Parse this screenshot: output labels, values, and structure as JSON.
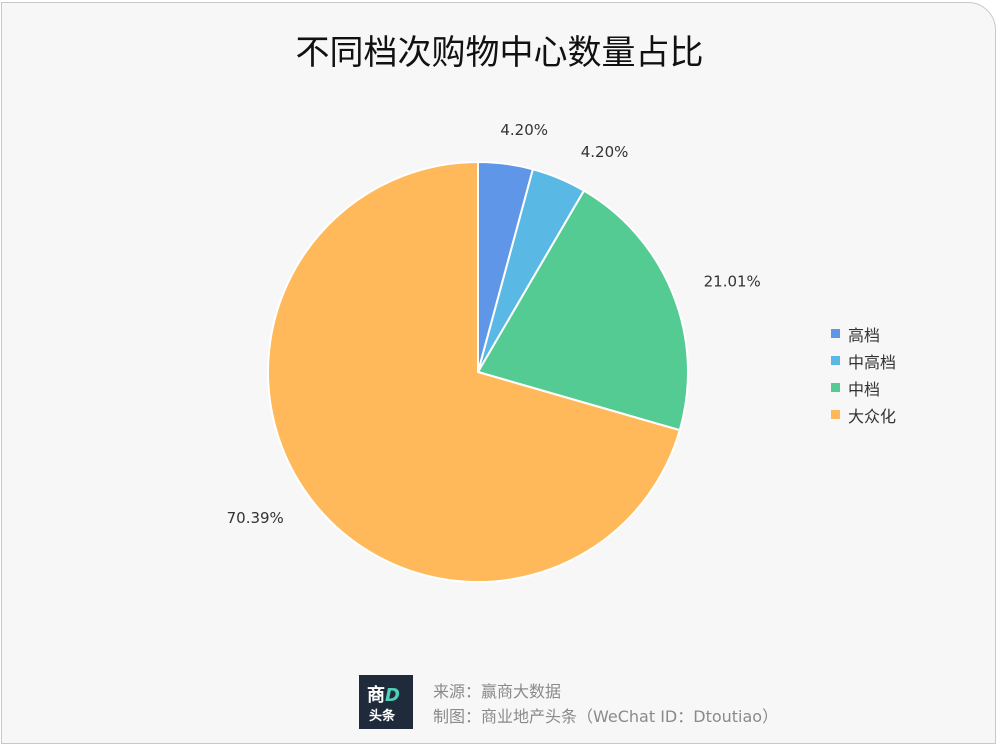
{
  "chart_data": {
    "type": "pie",
    "title": "不同档次购物中心数量占比",
    "categories": [
      "高档",
      "中高档",
      "中档",
      "大众化"
    ],
    "values": [
      4.2,
      4.2,
      21.01,
      70.39
    ],
    "data_labels": [
      "4.20%",
      "4.20%",
      "21.01%",
      "70.39%"
    ],
    "colors": [
      "#6096e8",
      "#5ab8e5",
      "#55cb94",
      "#ffb95a"
    ],
    "legend_position": "right"
  },
  "footer": {
    "logo_line1": "商",
    "logo_line1_d": "D",
    "logo_line2": "头条",
    "source": "来源：赢商大数据",
    "maker": "制图：商业地产头条（WeChat ID：Dtoutiao）"
  }
}
